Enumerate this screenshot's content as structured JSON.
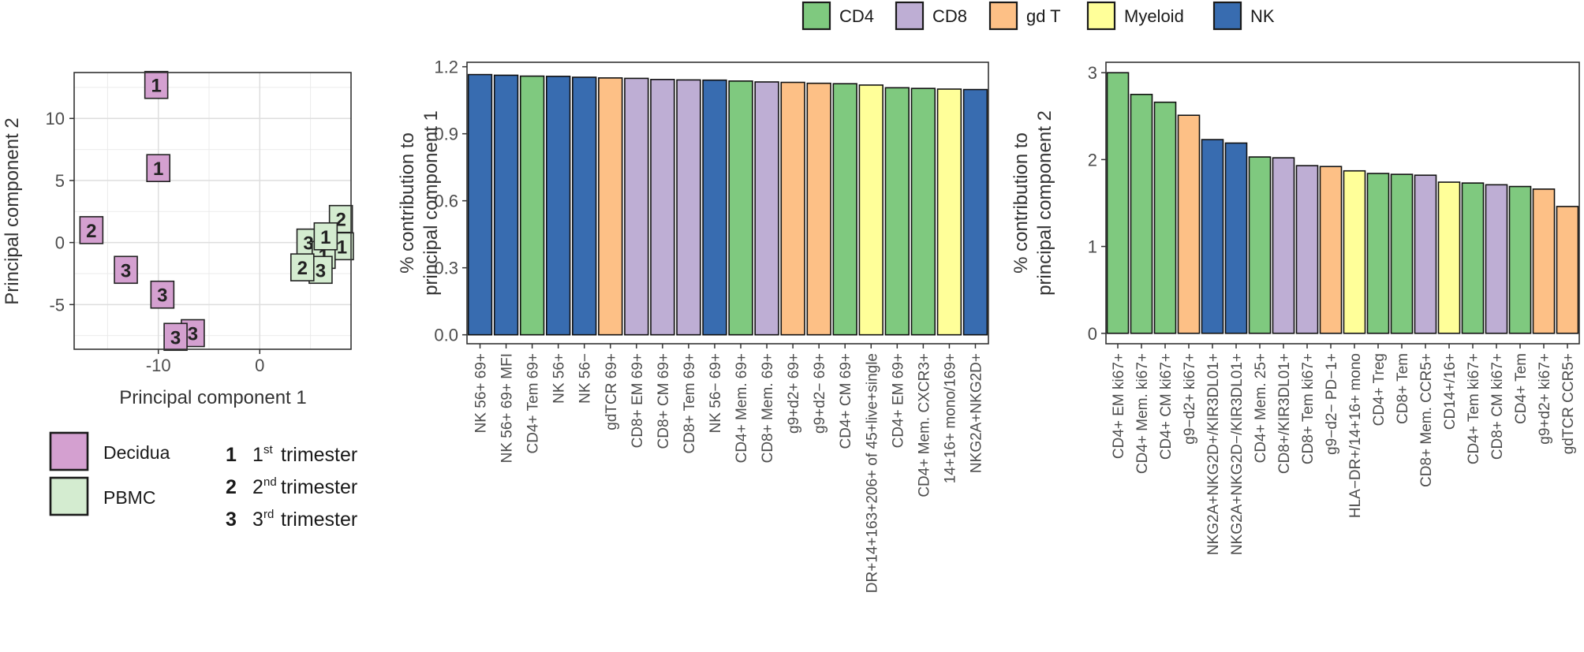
{
  "colors": {
    "CD4": "#7fc97f",
    "CD8": "#beaed4",
    "gd T": "#fdc086",
    "Myeloid": "#ffff99",
    "NK": "#386cb0",
    "Decidua": "#d4a0d0",
    "PBMC": "#d4ecd0"
  },
  "chart_data": [
    {
      "type": "scatter",
      "title": "",
      "xlabel": "Principal component 1",
      "ylabel": "Principal component 2",
      "xlim": [
        -18.3,
        9
      ],
      "ylim": [
        -8.6,
        13.7
      ],
      "xticks": [
        -10,
        0
      ],
      "yticks": [
        -5,
        0,
        5,
        10
      ],
      "grid": true,
      "points": [
        {
          "x": -10.2,
          "y": 12.7,
          "label": "1",
          "tissue": "Decidua"
        },
        {
          "x": -10.0,
          "y": 6.0,
          "label": "1",
          "tissue": "Decidua"
        },
        {
          "x": -16.6,
          "y": 1.0,
          "label": "2",
          "tissue": "Decidua"
        },
        {
          "x": -13.2,
          "y": -2.2,
          "label": "3",
          "tissue": "Decidua"
        },
        {
          "x": -9.6,
          "y": -4.2,
          "label": "3",
          "tissue": "Decidua"
        },
        {
          "x": -6.6,
          "y": -7.3,
          "label": "3",
          "tissue": "Decidua"
        },
        {
          "x": -8.3,
          "y": -7.6,
          "label": "3",
          "tissue": "Decidua"
        },
        {
          "x": 8.0,
          "y": 1.9,
          "label": "2",
          "tissue": "PBMC"
        },
        {
          "x": 8.1,
          "y": -0.3,
          "label": "1",
          "tissue": "PBMC"
        },
        {
          "x": 4.8,
          "y": 0.0,
          "label": "3",
          "tissue": "PBMC"
        },
        {
          "x": 6.3,
          "y": -1.0,
          "label": "1",
          "tissue": "PBMC"
        },
        {
          "x": 6.0,
          "y": -2.2,
          "label": "3",
          "tissue": "PBMC"
        },
        {
          "x": 4.2,
          "y": -2.0,
          "label": "2",
          "tissue": "PBMC"
        },
        {
          "x": 6.5,
          "y": 0.5,
          "label": "1",
          "tissue": "PBMC"
        }
      ],
      "legend": {
        "tissues": [
          "Decidua",
          "PBMC"
        ],
        "trimesters": [
          {
            "num": "1",
            "sup": "st",
            "text": "trimester"
          },
          {
            "num": "2",
            "sup": "nd",
            "text": "trimester"
          },
          {
            "num": "3",
            "sup": "rd",
            "text": "trimester"
          }
        ]
      }
    },
    {
      "type": "bar",
      "title": "",
      "xlabel": "",
      "ylabel": [
        "% contribution to",
        "principal component 1"
      ],
      "ylim": [
        -0.04,
        1.22
      ],
      "yticks": [
        "0.0",
        "0.3",
        "0.6",
        "0.9",
        "1.2"
      ],
      "categories": [
        "NK 56+ 69+",
        "NK 56+ 69+ MFI",
        "CD4+ Tem 69+",
        "NK 56+",
        "NK 56−",
        "gdTCR 69+",
        "CD8+ EM 69+",
        "CD8+ CM 69+",
        "CD8+ Tem 69+",
        "NK 56− 69+",
        "CD4+ Mem. 69+",
        "CD8+ Mem. 69+",
        "g9+d2+ 69+",
        "g9+d2− 69+",
        "CD4+ CM 69+",
        "DR+14+163+206+ of 45+live+single",
        "CD4+ EM 69+",
        "CD4+ Mem. CXCR3+",
        "14+16+ mono/169+",
        "NKG2A+NKG2D+"
      ],
      "values": [
        1.165,
        1.162,
        1.158,
        1.157,
        1.153,
        1.15,
        1.148,
        1.143,
        1.141,
        1.14,
        1.136,
        1.132,
        1.13,
        1.126,
        1.124,
        1.118,
        1.106,
        1.103,
        1.1,
        1.098
      ],
      "groups": [
        "NK",
        "NK",
        "CD4",
        "NK",
        "NK",
        "gd T",
        "CD8",
        "CD8",
        "CD8",
        "NK",
        "CD4",
        "CD8",
        "gd T",
        "gd T",
        "CD4",
        "Myeloid",
        "CD4",
        "CD4",
        "Myeloid",
        "NK"
      ]
    },
    {
      "type": "bar",
      "title": "",
      "xlabel": "",
      "ylabel": [
        "% contribution to",
        "principal component 2"
      ],
      "ylim": [
        -0.12,
        3.12
      ],
      "yticks": [
        "0",
        "1",
        "2",
        "3"
      ],
      "categories": [
        "CD4+ EM ki67+",
        "CD4+ Mem. ki67+",
        "CD4+ CM ki67+",
        "g9−d2+ ki67+",
        "NKG2A+NKG2D+/KIR3DL01+",
        "NKG2A+NKG2D−/KIR3DL01+",
        "CD4+ Mem. 25+",
        "CD8+/KIR3DL01+",
        "CD8+ Tem ki67+",
        "g9−d2− PD−1+",
        "HLA−DR+/14+16+ mono",
        "CD4+ Treg",
        "CD8+ Tem",
        "CD8+ Mem. CCR5+",
        "CD14+/16+",
        "CD4+ Tem ki67+",
        "CD8+ CM ki67+",
        "CD4+ Tem",
        "g9+d2+ ki67+",
        "gdTCR CCR5+"
      ],
      "values": [
        3.0,
        2.75,
        2.66,
        2.51,
        2.23,
        2.19,
        2.03,
        2.02,
        1.93,
        1.92,
        1.87,
        1.84,
        1.83,
        1.82,
        1.74,
        1.73,
        1.71,
        1.69,
        1.66,
        1.46
      ],
      "groups": [
        "CD4",
        "CD4",
        "CD4",
        "gd T",
        "NK",
        "NK",
        "CD4",
        "CD8",
        "CD8",
        "gd T",
        "Myeloid",
        "CD4",
        "CD4",
        "CD8",
        "Myeloid",
        "CD4",
        "CD8",
        "CD4",
        "gd T",
        "gd T"
      ]
    }
  ],
  "legend_groups": [
    "CD4",
    "CD8",
    "gd T",
    "Myeloid",
    "NK"
  ]
}
